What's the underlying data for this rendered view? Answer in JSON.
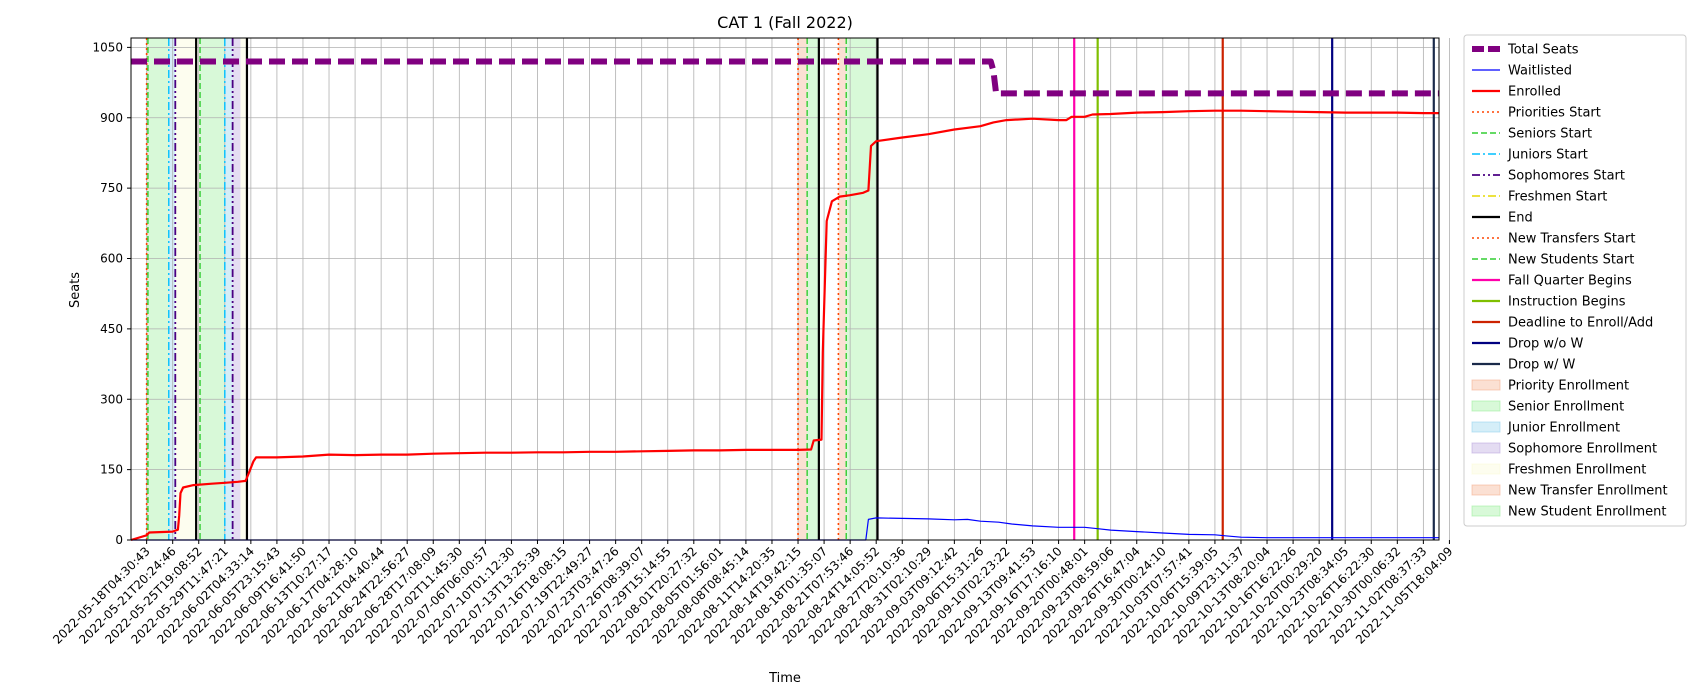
{
  "chart_data": {
    "type": "line",
    "title": "CAT 1 (Fall 2022)",
    "xlabel": "Time",
    "ylabel": "Seats",
    "ylim": [
      0,
      1070
    ],
    "grid": true,
    "legend_placement": "outside-right",
    "y_ticks": [
      0,
      150,
      300,
      450,
      600,
      750,
      900,
      1050
    ],
    "x_ticks": [
      "2022-05-18T04:30:43",
      "2022-05-21T20:24:46",
      "2022-05-25T19:08:52",
      "2022-05-29T11:47:21",
      "2022-06-02T04:33:14",
      "2022-06-05T23:15:43",
      "2022-06-09T16:41:50",
      "2022-06-13T10:27:17",
      "2022-06-17T04:28:10",
      "2022-06-21T04:40:44",
      "2022-06-24T22:56:27",
      "2022-06-28T17:08:09",
      "2022-07-02T11:45:30",
      "2022-07-06T06:00:57",
      "2022-07-10T01:12:30",
      "2022-07-13T13:25:39",
      "2022-07-16T18:08:15",
      "2022-07-19T22:49:27",
      "2022-07-23T03:47:26",
      "2022-07-26T08:39:07",
      "2022-07-29T15:14:55",
      "2022-08-01T20:27:32",
      "2022-08-05T01:56:01",
      "2022-08-08T08:45:14",
      "2022-08-11T14:20:35",
      "2022-08-14T19:42:15",
      "2022-08-18T01:35:07",
      "2022-08-21T07:53:46",
      "2022-08-24T14:05:52",
      "2022-08-27T20:10:36",
      "2022-08-31T02:10:29",
      "2022-09-03T09:12:42",
      "2022-09-06T15:31:26",
      "2022-09-10T02:23:22",
      "2022-09-13T09:41:53",
      "2022-09-16T17:16:10",
      "2022-09-20T00:48:01",
      "2022-09-23T08:59:06",
      "2022-09-26T16:47:04",
      "2022-09-30T00:24:10",
      "2022-10-03T07:57:41",
      "2022-10-06T15:39:05",
      "2022-10-09T23:11:37",
      "2022-10-13T08:20:04",
      "2022-10-16T16:22:26",
      "2022-10-20T00:29:20",
      "2022-10-23T08:34:05",
      "2022-10-26T16:22:30",
      "2022-10-30T00:06:32",
      "2022-11-02T08:37:33",
      "2022-11-05T18:04:09"
    ],
    "x_range": [
      -0.6,
      49.6
    ],
    "series": [
      {
        "name": "Total Seats",
        "color": "#800080",
        "style": "dashed-thick",
        "points": [
          [
            -0.6,
            1020
          ],
          [
            32.4,
            1020
          ],
          [
            32.5,
            1000
          ],
          [
            32.6,
            952
          ],
          [
            49.6,
            952
          ]
        ]
      },
      {
        "name": "Waitlisted",
        "color": "#0000ff",
        "style": "solid-thin",
        "points": [
          [
            -0.6,
            0
          ],
          [
            27.6,
            0
          ],
          [
            27.7,
            44
          ],
          [
            28,
            47
          ],
          [
            29,
            46
          ],
          [
            30,
            45
          ],
          [
            31,
            43
          ],
          [
            31.5,
            44
          ],
          [
            32,
            40
          ],
          [
            32.7,
            38
          ],
          [
            33.2,
            34
          ],
          [
            34,
            30
          ],
          [
            35,
            27
          ],
          [
            36,
            27
          ],
          [
            36.5,
            24
          ],
          [
            37,
            21
          ],
          [
            38,
            18
          ],
          [
            39,
            15
          ],
          [
            40,
            12
          ],
          [
            41,
            11
          ],
          [
            41.4,
            9
          ],
          [
            42,
            6
          ],
          [
            43,
            5
          ],
          [
            49.6,
            5
          ]
        ]
      },
      {
        "name": "Enrolled",
        "color": "#ff0000",
        "style": "solid",
        "points": [
          [
            -0.6,
            0
          ],
          [
            0.0,
            10
          ],
          [
            0.1,
            16
          ],
          [
            1.0,
            18
          ],
          [
            1.1,
            20
          ],
          [
            1.2,
            22
          ],
          [
            1.25,
            52
          ],
          [
            1.3,
            100
          ],
          [
            1.4,
            112
          ],
          [
            1.8,
            117
          ],
          [
            2.5,
            120
          ],
          [
            3.0,
            122
          ],
          [
            3.5,
            124
          ],
          [
            3.8,
            126
          ],
          [
            3.9,
            140
          ],
          [
            4.1,
            168
          ],
          [
            4.2,
            176
          ],
          [
            5,
            176
          ],
          [
            6,
            178
          ],
          [
            7,
            182
          ],
          [
            8,
            181
          ],
          [
            9,
            182
          ],
          [
            10,
            182
          ],
          [
            11,
            184
          ],
          [
            12,
            185
          ],
          [
            13,
            186
          ],
          [
            14,
            186
          ],
          [
            15,
            187
          ],
          [
            16,
            187
          ],
          [
            17,
            188
          ],
          [
            18,
            188
          ],
          [
            19,
            189
          ],
          [
            20,
            190
          ],
          [
            21,
            191
          ],
          [
            22,
            191
          ],
          [
            23,
            192
          ],
          [
            24,
            192
          ],
          [
            25,
            192
          ],
          [
            25.5,
            193
          ],
          [
            25.6,
            212
          ],
          [
            25.9,
            214
          ],
          [
            25.95,
            400
          ],
          [
            26.1,
            680
          ],
          [
            26.3,
            722
          ],
          [
            26.6,
            732
          ],
          [
            27,
            735
          ],
          [
            27.5,
            740
          ],
          [
            27.7,
            745
          ],
          [
            27.8,
            840
          ],
          [
            28,
            850
          ],
          [
            29,
            858
          ],
          [
            30,
            865
          ],
          [
            31,
            875
          ],
          [
            32,
            882
          ],
          [
            32.5,
            890
          ],
          [
            33,
            895
          ],
          [
            34,
            898
          ],
          [
            35,
            895
          ],
          [
            35.3,
            895
          ],
          [
            35.5,
            902
          ],
          [
            36,
            902
          ],
          [
            36.3,
            907
          ],
          [
            37,
            908
          ],
          [
            38,
            911
          ],
          [
            39,
            912
          ],
          [
            40,
            914
          ],
          [
            41,
            915
          ],
          [
            42,
            915
          ],
          [
            43,
            914
          ],
          [
            44,
            913
          ],
          [
            45,
            912
          ],
          [
            46,
            911
          ],
          [
            47,
            911
          ],
          [
            48,
            911
          ],
          [
            49,
            910
          ],
          [
            49.6,
            910
          ]
        ]
      }
    ],
    "event_lines": [
      {
        "name": "Priorities Start",
        "x": 0.0,
        "color": "#ff4500",
        "style": "dotted"
      },
      {
        "name": "Seniors Start",
        "x": 0.05,
        "color": "#32cd32",
        "style": "dashed"
      },
      {
        "name": "Juniors Start",
        "x": 0.85,
        "color": "#00bfff",
        "style": "dashdot"
      },
      {
        "name": "Sophomores Start",
        "x": 1.1,
        "color": "#4b0082",
        "style": "dashdotdot"
      },
      {
        "name": "End",
        "x": 1.9,
        "color": "#000000",
        "style": "solid"
      },
      {
        "name": "Seniors Start",
        "x": 2.05,
        "color": "#32cd32",
        "style": "dashed"
      },
      {
        "name": "Juniors Start",
        "x": 3.0,
        "color": "#00bfff",
        "style": "dashdot"
      },
      {
        "name": "Sophomores Start",
        "x": 3.3,
        "color": "#4b0082",
        "style": "dashdotdot"
      },
      {
        "name": "End",
        "x": 3.85,
        "color": "#000000",
        "style": "solid"
      },
      {
        "name": "New Transfers Start",
        "x": 25.0,
        "color": "#ff4500",
        "style": "dotted"
      },
      {
        "name": "New Students Start",
        "x": 25.35,
        "color": "#32cd32",
        "style": "dashed"
      },
      {
        "name": "End",
        "x": 25.8,
        "color": "#000000",
        "style": "solid"
      },
      {
        "name": "New Transfers Start",
        "x": 26.55,
        "color": "#ff4500",
        "style": "dotted"
      },
      {
        "name": "New Students Start",
        "x": 26.85,
        "color": "#32cd32",
        "style": "dashed"
      },
      {
        "name": "End",
        "x": 28.05,
        "color": "#000000",
        "style": "solid"
      },
      {
        "name": "Fall Quarter Begins",
        "x": 35.6,
        "color": "#ff00aa",
        "style": "solid"
      },
      {
        "name": "Instruction Begins",
        "x": 36.5,
        "color": "#7fbf00",
        "style": "solid"
      },
      {
        "name": "Deadline to Enroll/Add",
        "x": 41.3,
        "color": "#cc2200",
        "style": "solid"
      },
      {
        "name": "Drop w/o W",
        "x": 45.5,
        "color": "#000080",
        "style": "solid"
      },
      {
        "name": "Drop w/ W",
        "x": 49.4,
        "color": "#1a2a4a",
        "style": "solid"
      }
    ],
    "spans": [
      {
        "name": "Priority Enrollment",
        "x0": 0.0,
        "x1": 0.05,
        "color": "#f4a582"
      },
      {
        "name": "Senior Enrollment",
        "x0": 0.05,
        "x1": 0.85,
        "color": "#90ee90"
      },
      {
        "name": "Junior Enrollment",
        "x0": 0.85,
        "x1": 1.1,
        "color": "#87ceeb"
      },
      {
        "name": "Freshmen Enrollment",
        "x0": 1.1,
        "x1": 2.05,
        "color": "#fafad2"
      },
      {
        "name": "Senior Enrollment",
        "x0": 2.05,
        "x1": 3.0,
        "color": "#90ee90"
      },
      {
        "name": "Junior Enrollment",
        "x0": 3.0,
        "x1": 3.3,
        "color": "#87ceeb"
      },
      {
        "name": "Sophomore Enrollment",
        "x0": 3.3,
        "x1": 3.6,
        "color": "#b19cd9"
      },
      {
        "name": "Freshmen Enrollment",
        "x0": 3.6,
        "x1": 3.85,
        "color": "#fafad2"
      },
      {
        "name": "New Transfer Enrollment",
        "x0": 25.0,
        "x1": 25.35,
        "color": "#f4a582"
      },
      {
        "name": "New Student Enrollment",
        "x0": 25.35,
        "x1": 25.8,
        "color": "#90ee90"
      },
      {
        "name": "New Transfer Enrollment",
        "x0": 26.55,
        "x1": 26.85,
        "color": "#f4a582"
      },
      {
        "name": "New Student Enrollment",
        "x0": 26.85,
        "x1": 28.05,
        "color": "#90ee90"
      }
    ],
    "legend": [
      {
        "label": "Total Seats",
        "kind": "line",
        "color": "#800080",
        "style": "dashed-thick"
      },
      {
        "label": "Waitlisted",
        "kind": "line",
        "color": "#0000ff",
        "style": "solid-thin"
      },
      {
        "label": "Enrolled",
        "kind": "line",
        "color": "#ff0000",
        "style": "solid"
      },
      {
        "label": "Priorities Start",
        "kind": "line",
        "color": "#ff4500",
        "style": "dotted"
      },
      {
        "label": "Seniors Start",
        "kind": "line",
        "color": "#32cd32",
        "style": "dashed"
      },
      {
        "label": "Juniors Start",
        "kind": "line",
        "color": "#00bfff",
        "style": "dashdot"
      },
      {
        "label": "Sophomores Start",
        "kind": "line",
        "color": "#4b0082",
        "style": "dashdotdot"
      },
      {
        "label": "Freshmen Start",
        "kind": "line",
        "color": "#e6d800",
        "style": "dashdot"
      },
      {
        "label": "End",
        "kind": "line",
        "color": "#000000",
        "style": "solid"
      },
      {
        "label": "New Transfers Start",
        "kind": "line",
        "color": "#ff4500",
        "style": "dotted"
      },
      {
        "label": "New Students Start",
        "kind": "line",
        "color": "#32cd32",
        "style": "dashed"
      },
      {
        "label": "Fall Quarter Begins",
        "kind": "line",
        "color": "#ff00aa",
        "style": "solid"
      },
      {
        "label": "Instruction Begins",
        "kind": "line",
        "color": "#7fbf00",
        "style": "solid"
      },
      {
        "label": "Deadline to Enroll/Add",
        "kind": "line",
        "color": "#cc2200",
        "style": "solid"
      },
      {
        "label": "Drop w/o W",
        "kind": "line",
        "color": "#000080",
        "style": "solid"
      },
      {
        "label": "Drop w/ W",
        "kind": "line",
        "color": "#1a2a4a",
        "style": "solid"
      },
      {
        "label": "Priority Enrollment",
        "kind": "patch",
        "color": "#f4a582"
      },
      {
        "label": "Senior Enrollment",
        "kind": "patch",
        "color": "#90ee90"
      },
      {
        "label": "Junior Enrollment",
        "kind": "patch",
        "color": "#87ceeb"
      },
      {
        "label": "Sophomore Enrollment",
        "kind": "patch",
        "color": "#b19cd9"
      },
      {
        "label": "Freshmen Enrollment",
        "kind": "patch",
        "color": "#fafad2"
      },
      {
        "label": "New Transfer Enrollment",
        "kind": "patch",
        "color": "#f4a582"
      },
      {
        "label": "New Student Enrollment",
        "kind": "patch",
        "color": "#90ee90"
      }
    ]
  }
}
